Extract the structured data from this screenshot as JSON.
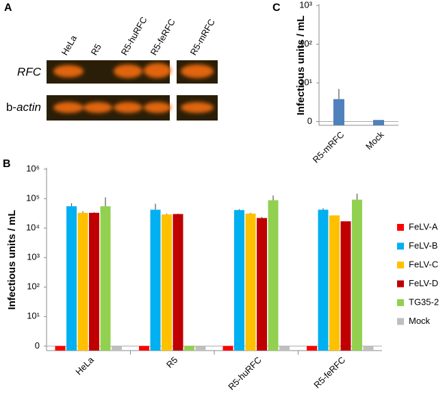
{
  "panel_labels": [
    "A",
    "B",
    "C"
  ],
  "gel": {
    "lanes": [
      "HeLa",
      "R5",
      "R5-huRFC",
      "R5-feRFC",
      "R5-mRFC"
    ],
    "row_1": "RFC",
    "row_2_prefix": "b-",
    "row_2_gene": "actin"
  },
  "chart_data": [
    {
      "type": "bar",
      "log_scale": true,
      "y_label": "Infectious units / mL",
      "categories": [
        "HeLa",
        "R5",
        "R5-huRFC",
        "R5-feRFC"
      ],
      "ylim": [
        0.7,
        1000000
      ],
      "yticks": [
        {
          "value": 1,
          "label": "0"
        },
        {
          "value": 10,
          "label": "10¹"
        },
        {
          "value": 100,
          "label": "10²"
        },
        {
          "value": 1000,
          "label": "10³"
        },
        {
          "value": 10000,
          "label": "10⁴"
        },
        {
          "value": 100000,
          "label": "10⁵"
        },
        {
          "value": 1000000,
          "label": "10⁶"
        }
      ],
      "legend": "right",
      "series": [
        {
          "name": "FeLV-A",
          "color": "#ff0000",
          "values": [
            1,
            1,
            1,
            1
          ],
          "errors": [
            null,
            null,
            null,
            null
          ]
        },
        {
          "name": "FeLV-B",
          "color": "#00b0f0",
          "values": [
            55000,
            42000,
            41000,
            42000
          ],
          "errors": [
            15000,
            25000,
            3000,
            5000
          ]
        },
        {
          "name": "FeLV-C",
          "color": "#ffc000",
          "values": [
            33000,
            29000,
            31000,
            27000
          ],
          "errors": [
            4000,
            2000,
            2000,
            null
          ]
        },
        {
          "name": "FeLV-D",
          "color": "#c00000",
          "values": [
            33000,
            30000,
            22000,
            17000
          ],
          "errors": [
            2000,
            1000,
            2000,
            null
          ]
        },
        {
          "name": "TG35-2",
          "color": "#92d050",
          "values": [
            55000,
            1,
            88000,
            92000
          ],
          "errors": [
            55000,
            null,
            40000,
            55000
          ]
        },
        {
          "name": "Mock",
          "color": "#bfbfbf",
          "values": [
            1,
            1,
            1,
            1
          ],
          "errors": [
            null,
            null,
            null,
            null
          ]
        }
      ]
    },
    {
      "type": "bar",
      "log_scale": true,
      "y_label": "Infectious units / mL",
      "categories": [
        "R5-mRFC",
        "Mock"
      ],
      "ylim": [
        0.8,
        1000
      ],
      "yticks": [
        {
          "value": 1,
          "label": "0"
        },
        {
          "value": 10,
          "label": "10¹"
        },
        {
          "value": 100,
          "label": "10²"
        },
        {
          "value": 1000,
          "label": "10³"
        }
      ],
      "color": "#4f81bd",
      "values": [
        3.8,
        1.1
      ],
      "errors": [
        3.2,
        null
      ]
    }
  ]
}
